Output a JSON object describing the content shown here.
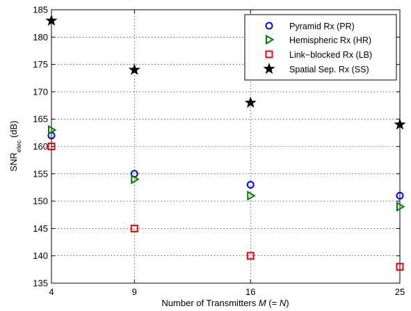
{
  "chart_data": {
    "type": "scatter",
    "xlabel": {
      "prefix": "Number of Transmitters ",
      "var": "M",
      "open": " (= ",
      "var2": "N",
      "close": ")"
    },
    "ylabel": {
      "main": "SNR",
      "sub": "elec",
      "suffix": " (dB)"
    },
    "x_ticks": [
      4,
      9,
      16,
      25
    ],
    "xlim": [
      4,
      25
    ],
    "ylim": [
      135,
      185
    ],
    "y_ticks": [
      135,
      140,
      145,
      150,
      155,
      160,
      165,
      170,
      175,
      180,
      185
    ],
    "grid": true,
    "legend_position": "top-right",
    "series": [
      {
        "name": "Pyramid Rx (PR)",
        "marker": "circle",
        "color": "#0000ff",
        "x": [
          4,
          9,
          16,
          25
        ],
        "y": [
          162,
          155,
          153,
          151
        ]
      },
      {
        "name": "Hemispheric Rx (HR)",
        "marker": "triangle-right",
        "color": "#008000",
        "x": [
          4,
          9,
          16,
          25
        ],
        "y": [
          163,
          154,
          151,
          149
        ]
      },
      {
        "name": "Link−blocked Rx (LB)",
        "marker": "square",
        "color": "#ff0000",
        "x": [
          4,
          9,
          16,
          25
        ],
        "y": [
          160,
          145,
          140,
          138
        ]
      },
      {
        "name": "Spatial Sep. Rx (SS)",
        "marker": "star",
        "color": "#000000",
        "x": [
          4,
          9,
          16,
          25
        ],
        "y": [
          183,
          174,
          168,
          164
        ]
      }
    ]
  }
}
